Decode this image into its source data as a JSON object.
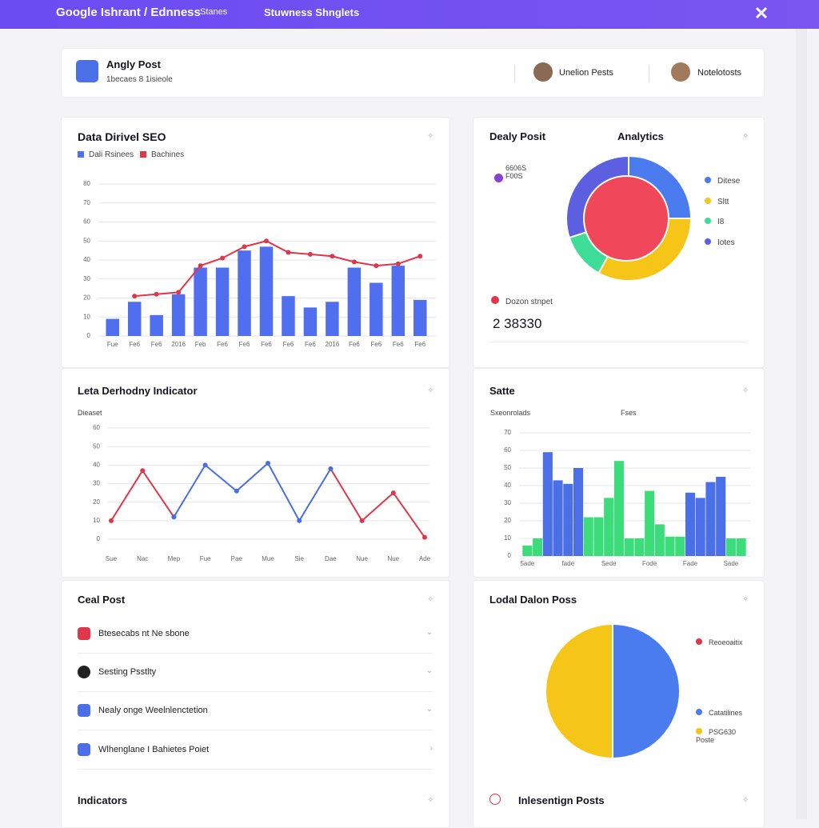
{
  "header": {
    "brand": "Google Ishrant / Ednness",
    "nav": [
      "Stanes",
      "Stuwness Shnglets"
    ]
  },
  "profile": {
    "title": "Angly Post",
    "meta": "1becaes 8   1isieole",
    "users": [
      "Unelion Pests",
      "Notelotosts"
    ]
  },
  "analytics_card": {
    "left_title": "Dealy Posit",
    "badge": "6606S F00S",
    "stat_label": "Dozon stnpet",
    "stat_value": "2 38330"
  },
  "posts_card": {
    "title": "Ceal Post",
    "items": [
      "Btesecabs nt Ne sbone",
      "Sesting Psstlty",
      "Nealy onge Weelnlenctetion",
      "Wlhenglane I Bahietes Poiet"
    ]
  },
  "footer": {
    "left_title": "Indicators",
    "right_title": "Inlesentign Posts"
  },
  "chart_data": [
    {
      "type": "bar",
      "title": "Data Dirivel SEO",
      "categories": [
        "Fue",
        "Fe6",
        "Fe6",
        "2016",
        "Feb",
        "Fe6",
        "Fe6",
        "Fe6",
        "Fe6",
        "Fe6",
        "2016",
        "Fe6",
        "Fe6",
        "Fe6",
        "Fe6"
      ],
      "series": [
        {
          "name": "Dali Rsinees",
          "type": "bar",
          "color": "#4f6ef0",
          "values": [
            9,
            18,
            11,
            22,
            36,
            36,
            45,
            47,
            21,
            15,
            18,
            36,
            28,
            37,
            19
          ]
        },
        {
          "name": "Bachines",
          "type": "line",
          "color": "#e0364a",
          "values": [
            null,
            21,
            22,
            23,
            37,
            41,
            47,
            50,
            44,
            43,
            42,
            39,
            37,
            38,
            42
          ]
        }
      ],
      "ylim": [
        0,
        80
      ],
      "yticks": [
        0,
        10,
        20,
        30,
        40,
        50,
        60,
        70,
        80
      ],
      "grid": true
    },
    {
      "type": "pie",
      "title": "Analytics",
      "categories": [
        "Ditese",
        "Sltt",
        "I8",
        "Iotes"
      ],
      "values": [
        25,
        33,
        12,
        30
      ],
      "colors": [
        "#4a7cf0",
        "#f5c518",
        "#3ddc97",
        "#5b5fe0"
      ]
    },
    {
      "type": "line",
      "title": "Leta Derhodny Indicator",
      "ylabel": "Dieaset",
      "categories": [
        "Sue",
        "Nac",
        "Mep",
        "Fue",
        "Pae",
        "Mue",
        "Sie",
        "Dae",
        "Nue",
        "Nue",
        "Ade"
      ],
      "series": [
        {
          "type": "line",
          "color": "#e0364a",
          "values": [
            10,
            37,
            12,
            null,
            null,
            null,
            null,
            38,
            10,
            25,
            1
          ]
        },
        {
          "type": "line",
          "color": "#4a6fe0",
          "values": [
            null,
            null,
            12,
            40,
            26,
            41,
            10,
            38,
            null,
            null,
            null
          ]
        }
      ],
      "ylim": [
        0,
        60
      ],
      "yticks": [
        0,
        10,
        20,
        30,
        40,
        50,
        60
      ],
      "grid": true
    },
    {
      "type": "bar",
      "title": "Satte",
      "categories": [
        "5ade",
        null,
        null,
        null,
        "fade",
        null,
        null,
        null,
        "Sede",
        null,
        null,
        null,
        "Fode",
        null,
        null,
        null,
        "Fade",
        null,
        null,
        null,
        "Sade",
        null
      ],
      "series": [
        {
          "name": "Sxeonrolads",
          "type": "bar",
          "color": "#3ddc7a",
          "values": [
            6,
            10,
            null,
            null,
            null,
            null,
            22,
            22,
            33,
            54,
            10,
            10,
            37,
            18,
            11,
            11,
            null,
            null,
            null,
            null,
            10,
            10
          ]
        },
        {
          "name": "Fses",
          "type": "bar",
          "color": "#4a6fe8",
          "values": [
            null,
            null,
            59,
            43,
            41,
            50,
            null,
            null,
            null,
            null,
            null,
            null,
            null,
            null,
            null,
            null,
            36,
            33,
            42,
            45,
            null,
            null
          ]
        }
      ],
      "ylim": [
        0,
        70
      ],
      "yticks": [
        0,
        10,
        20,
        30,
        40,
        50,
        60,
        70
      ],
      "grid": true
    },
    {
      "type": "pie",
      "title": "Lodal Dalon Poss",
      "categories": [
        "Reoeoaitix",
        "Catatilines",
        "PSG630 Poste"
      ],
      "values": [
        0,
        50,
        50
      ],
      "colors": [
        "#e0364a",
        "#4a7cf0",
        "#f5c518"
      ]
    }
  ]
}
